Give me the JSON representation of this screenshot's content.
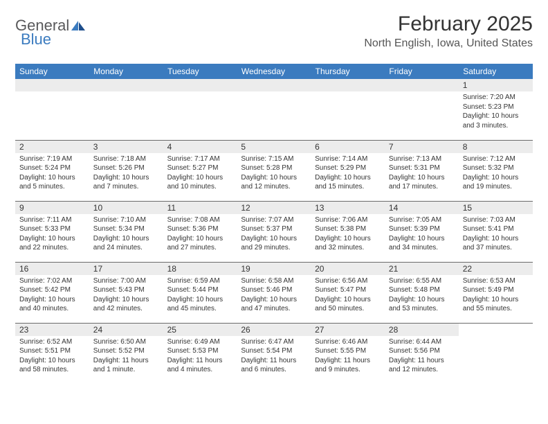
{
  "logo": {
    "general": "General",
    "blue": "Blue"
  },
  "title": "February 2025",
  "location": "North English, Iowa, United States",
  "colors": {
    "header_bg": "#3b7bbf",
    "header_text": "#ffffff",
    "daynum_bg": "#ececec",
    "text": "#333333",
    "rule": "#6a6a6a"
  },
  "fonts": {
    "title_size": 30,
    "location_size": 16,
    "dow_size": 12,
    "daynum_size": 12,
    "body_size": 10
  },
  "days_of_week": [
    "Sunday",
    "Monday",
    "Tuesday",
    "Wednesday",
    "Thursday",
    "Friday",
    "Saturday"
  ],
  "weeks": [
    [
      null,
      null,
      null,
      null,
      null,
      null,
      {
        "n": "1",
        "sr": "Sunrise: 7:20 AM",
        "ss": "Sunset: 5:23 PM",
        "dl": "Daylight: 10 hours and 3 minutes."
      }
    ],
    [
      {
        "n": "2",
        "sr": "Sunrise: 7:19 AM",
        "ss": "Sunset: 5:24 PM",
        "dl": "Daylight: 10 hours and 5 minutes."
      },
      {
        "n": "3",
        "sr": "Sunrise: 7:18 AM",
        "ss": "Sunset: 5:26 PM",
        "dl": "Daylight: 10 hours and 7 minutes."
      },
      {
        "n": "4",
        "sr": "Sunrise: 7:17 AM",
        "ss": "Sunset: 5:27 PM",
        "dl": "Daylight: 10 hours and 10 minutes."
      },
      {
        "n": "5",
        "sr": "Sunrise: 7:15 AM",
        "ss": "Sunset: 5:28 PM",
        "dl": "Daylight: 10 hours and 12 minutes."
      },
      {
        "n": "6",
        "sr": "Sunrise: 7:14 AM",
        "ss": "Sunset: 5:29 PM",
        "dl": "Daylight: 10 hours and 15 minutes."
      },
      {
        "n": "7",
        "sr": "Sunrise: 7:13 AM",
        "ss": "Sunset: 5:31 PM",
        "dl": "Daylight: 10 hours and 17 minutes."
      },
      {
        "n": "8",
        "sr": "Sunrise: 7:12 AM",
        "ss": "Sunset: 5:32 PM",
        "dl": "Daylight: 10 hours and 19 minutes."
      }
    ],
    [
      {
        "n": "9",
        "sr": "Sunrise: 7:11 AM",
        "ss": "Sunset: 5:33 PM",
        "dl": "Daylight: 10 hours and 22 minutes."
      },
      {
        "n": "10",
        "sr": "Sunrise: 7:10 AM",
        "ss": "Sunset: 5:34 PM",
        "dl": "Daylight: 10 hours and 24 minutes."
      },
      {
        "n": "11",
        "sr": "Sunrise: 7:08 AM",
        "ss": "Sunset: 5:36 PM",
        "dl": "Daylight: 10 hours and 27 minutes."
      },
      {
        "n": "12",
        "sr": "Sunrise: 7:07 AM",
        "ss": "Sunset: 5:37 PM",
        "dl": "Daylight: 10 hours and 29 minutes."
      },
      {
        "n": "13",
        "sr": "Sunrise: 7:06 AM",
        "ss": "Sunset: 5:38 PM",
        "dl": "Daylight: 10 hours and 32 minutes."
      },
      {
        "n": "14",
        "sr": "Sunrise: 7:05 AM",
        "ss": "Sunset: 5:39 PM",
        "dl": "Daylight: 10 hours and 34 minutes."
      },
      {
        "n": "15",
        "sr": "Sunrise: 7:03 AM",
        "ss": "Sunset: 5:41 PM",
        "dl": "Daylight: 10 hours and 37 minutes."
      }
    ],
    [
      {
        "n": "16",
        "sr": "Sunrise: 7:02 AM",
        "ss": "Sunset: 5:42 PM",
        "dl": "Daylight: 10 hours and 40 minutes."
      },
      {
        "n": "17",
        "sr": "Sunrise: 7:00 AM",
        "ss": "Sunset: 5:43 PM",
        "dl": "Daylight: 10 hours and 42 minutes."
      },
      {
        "n": "18",
        "sr": "Sunrise: 6:59 AM",
        "ss": "Sunset: 5:44 PM",
        "dl": "Daylight: 10 hours and 45 minutes."
      },
      {
        "n": "19",
        "sr": "Sunrise: 6:58 AM",
        "ss": "Sunset: 5:46 PM",
        "dl": "Daylight: 10 hours and 47 minutes."
      },
      {
        "n": "20",
        "sr": "Sunrise: 6:56 AM",
        "ss": "Sunset: 5:47 PM",
        "dl": "Daylight: 10 hours and 50 minutes."
      },
      {
        "n": "21",
        "sr": "Sunrise: 6:55 AM",
        "ss": "Sunset: 5:48 PM",
        "dl": "Daylight: 10 hours and 53 minutes."
      },
      {
        "n": "22",
        "sr": "Sunrise: 6:53 AM",
        "ss": "Sunset: 5:49 PM",
        "dl": "Daylight: 10 hours and 55 minutes."
      }
    ],
    [
      {
        "n": "23",
        "sr": "Sunrise: 6:52 AM",
        "ss": "Sunset: 5:51 PM",
        "dl": "Daylight: 10 hours and 58 minutes."
      },
      {
        "n": "24",
        "sr": "Sunrise: 6:50 AM",
        "ss": "Sunset: 5:52 PM",
        "dl": "Daylight: 11 hours and 1 minute."
      },
      {
        "n": "25",
        "sr": "Sunrise: 6:49 AM",
        "ss": "Sunset: 5:53 PM",
        "dl": "Daylight: 11 hours and 4 minutes."
      },
      {
        "n": "26",
        "sr": "Sunrise: 6:47 AM",
        "ss": "Sunset: 5:54 PM",
        "dl": "Daylight: 11 hours and 6 minutes."
      },
      {
        "n": "27",
        "sr": "Sunrise: 6:46 AM",
        "ss": "Sunset: 5:55 PM",
        "dl": "Daylight: 11 hours and 9 minutes."
      },
      {
        "n": "28",
        "sr": "Sunrise: 6:44 AM",
        "ss": "Sunset: 5:56 PM",
        "dl": "Daylight: 11 hours and 12 minutes."
      },
      null
    ]
  ]
}
